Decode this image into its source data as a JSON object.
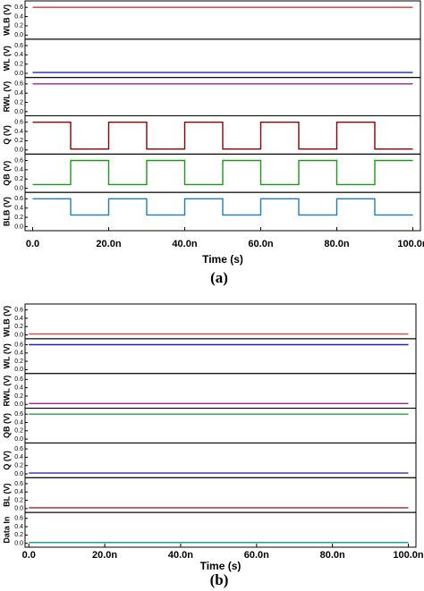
{
  "chart_data": [
    {
      "type": "line",
      "caption": "(a)",
      "x_label": "Time (s)",
      "xlim": [
        -2e-09,
        1.02e-07
      ],
      "xticks": [
        {
          "value": 0,
          "label": "0.0"
        },
        {
          "value": 2e-08,
          "label": "20.0n"
        },
        {
          "value": 4e-08,
          "label": "40.0n"
        },
        {
          "value": 6e-08,
          "label": "60.0n"
        },
        {
          "value": 8e-08,
          "label": "80.0n"
        },
        {
          "value": 1e-07,
          "label": "100.0n"
        }
      ],
      "x": [
        0,
        1e-08,
        1e-08,
        2e-08,
        2e-08,
        3e-08,
        3e-08,
        4e-08,
        4e-08,
        5e-08,
        5e-08,
        6e-08,
        6e-08,
        7e-08,
        7e-08,
        8e-08,
        8e-08,
        9e-08,
        9e-08,
        1e-07
      ],
      "panels": [
        {
          "y_label": "WLB (V)",
          "ylim": [
            -0.05,
            0.7
          ],
          "yticks": [
            {
              "value": 0,
              "label": "0.0"
            },
            0.2,
            0.4,
            0.6
          ],
          "series": [
            {
              "color": "#e0303a",
              "values": [
                0.6,
                0.6,
                0.6,
                0.6,
                0.6,
                0.6,
                0.6,
                0.6,
                0.6,
                0.6,
                0.6,
                0.6,
                0.6,
                0.6,
                0.6,
                0.6,
                0.6,
                0.6,
                0.6,
                0.6
              ]
            }
          ]
        },
        {
          "y_label": "WL (V)",
          "ylim": [
            -0.05,
            0.7
          ],
          "yticks": [
            {
              "value": 0,
              "label": "0.0"
            },
            0.2,
            0.4,
            0.6
          ],
          "series": [
            {
              "color": "#2020c0",
              "values": [
                0.02,
                0.02,
                0.02,
                0.02,
                0.02,
                0.02,
                0.02,
                0.02,
                0.02,
                0.02,
                0.02,
                0.02,
                0.02,
                0.02,
                0.02,
                0.02,
                0.02,
                0.02,
                0.02,
                0.02
              ]
            }
          ]
        },
        {
          "y_label": "RWL (V)",
          "ylim": [
            -0.05,
            0.7
          ],
          "yticks": [
            {
              "value": 0,
              "label": "0.0"
            },
            0.2,
            0.4,
            0.6
          ],
          "series": [
            {
              "color": "#a020a0",
              "values": [
                0.6,
                0.6,
                0.6,
                0.6,
                0.6,
                0.6,
                0.6,
                0.6,
                0.6,
                0.6,
                0.6,
                0.6,
                0.6,
                0.6,
                0.6,
                0.6,
                0.6,
                0.6,
                0.6,
                0.6
              ]
            }
          ]
        },
        {
          "y_label": "Q (V)",
          "ylim": [
            -0.05,
            0.7
          ],
          "yticks": [
            {
              "value": 0,
              "label": "0.0"
            },
            0.2,
            0.4,
            0.6
          ],
          "series": [
            {
              "color": "#8b0000",
              "values": [
                0.6,
                0.6,
                0.02,
                0.02,
                0.6,
                0.6,
                0.02,
                0.02,
                0.6,
                0.6,
                0.02,
                0.02,
                0.6,
                0.6,
                0.02,
                0.02,
                0.6,
                0.6,
                0.02,
                0.02
              ]
            }
          ]
        },
        {
          "y_label": "QB (V)",
          "ylim": [
            -0.05,
            0.7
          ],
          "yticks": [
            {
              "value": 0,
              "label": "0.0"
            },
            0.2,
            0.4,
            0.6
          ],
          "series": [
            {
              "color": "#1a9a1a",
              "values": [
                0.08,
                0.08,
                0.6,
                0.6,
                0.08,
                0.08,
                0.6,
                0.6,
                0.08,
                0.08,
                0.6,
                0.6,
                0.08,
                0.08,
                0.6,
                0.6,
                0.08,
                0.08,
                0.6,
                0.6
              ]
            }
          ]
        },
        {
          "y_label": "BLB (V)",
          "ylim": [
            -0.05,
            0.7
          ],
          "yticks": [
            {
              "value": 0,
              "label": "0.0"
            },
            0.2,
            0.4,
            0.6
          ],
          "series": [
            {
              "color": "#1a7fc0",
              "values": [
                0.6,
                0.6,
                0.25,
                0.25,
                0.6,
                0.6,
                0.25,
                0.25,
                0.6,
                0.6,
                0.25,
                0.25,
                0.6,
                0.6,
                0.25,
                0.25,
                0.6,
                0.6,
                0.25,
                0.25
              ]
            }
          ]
        }
      ]
    },
    {
      "type": "line",
      "caption": "(b)",
      "x_label": "Time (s)",
      "xlim": [
        -1e-09,
        1.02e-07
      ],
      "xticks": [
        {
          "value": 0,
          "label": "0.0"
        },
        {
          "value": 2e-08,
          "label": "20.0n"
        },
        {
          "value": 4e-08,
          "label": "40.0n"
        },
        {
          "value": 6e-08,
          "label": "60.0n"
        },
        {
          "value": 8e-08,
          "label": "80.0n"
        },
        {
          "value": 1e-07,
          "label": "100.0n"
        }
      ],
      "x": [
        0,
        1e-07
      ],
      "panels": [
        {
          "y_label": "WLB (V)",
          "ylim": [
            -0.05,
            0.7
          ],
          "yticks": [
            {
              "value": 0,
              "label": "0.0"
            },
            0.2,
            0.4,
            0.6
          ],
          "series": [
            {
              "color": "#e84040",
              "values": [
                0.02,
                0.02
              ]
            }
          ]
        },
        {
          "y_label": "WL (V)",
          "ylim": [
            -0.05,
            0.7
          ],
          "yticks": [
            {
              "value": 0,
              "label": "0.0"
            },
            0.2,
            0.4,
            0.6
          ],
          "series": [
            {
              "color": "#2020c0",
              "values": [
                0.6,
                0.6
              ]
            }
          ]
        },
        {
          "y_label": "RWL (V)",
          "ylim": [
            -0.05,
            0.7
          ],
          "yticks": [
            {
              "value": 0,
              "label": "0.0"
            },
            0.2,
            0.4,
            0.6
          ],
          "series": [
            {
              "color": "#a020a0",
              "values": [
                0.02,
                0.02
              ]
            }
          ]
        },
        {
          "y_label": "QB (V)",
          "ylim": [
            -0.05,
            0.7
          ],
          "yticks": [
            {
              "value": 0,
              "label": "0.0"
            },
            0.2,
            0.4,
            0.6
          ],
          "series": [
            {
              "color": "#20a040",
              "values": [
                0.6,
                0.6
              ]
            }
          ]
        },
        {
          "y_label": "Q (V)",
          "ylim": [
            -0.05,
            0.7
          ],
          "yticks": [
            {
              "value": 0,
              "label": "0.0"
            },
            0.2,
            0.4,
            0.6
          ],
          "series": [
            {
              "color": "#3030a0",
              "values": [
                0.02,
                0.02
              ]
            }
          ]
        },
        {
          "y_label": "BL (V)",
          "ylim": [
            -0.05,
            0.7
          ],
          "yticks": [
            {
              "value": 0,
              "label": "0.0"
            },
            0.2,
            0.4,
            0.6
          ],
          "series": [
            {
              "color": "#b02020",
              "values": [
                0.02,
                0.02
              ]
            }
          ]
        },
        {
          "y_label": "Data In",
          "ylim": [
            -0.05,
            0.7
          ],
          "yticks": [
            {
              "value": 0,
              "label": "0.0"
            },
            0.2,
            0.4,
            0.6
          ],
          "series": [
            {
              "color": "#20a0a0",
              "values": [
                0.02,
                0.02
              ]
            }
          ]
        }
      ]
    }
  ]
}
